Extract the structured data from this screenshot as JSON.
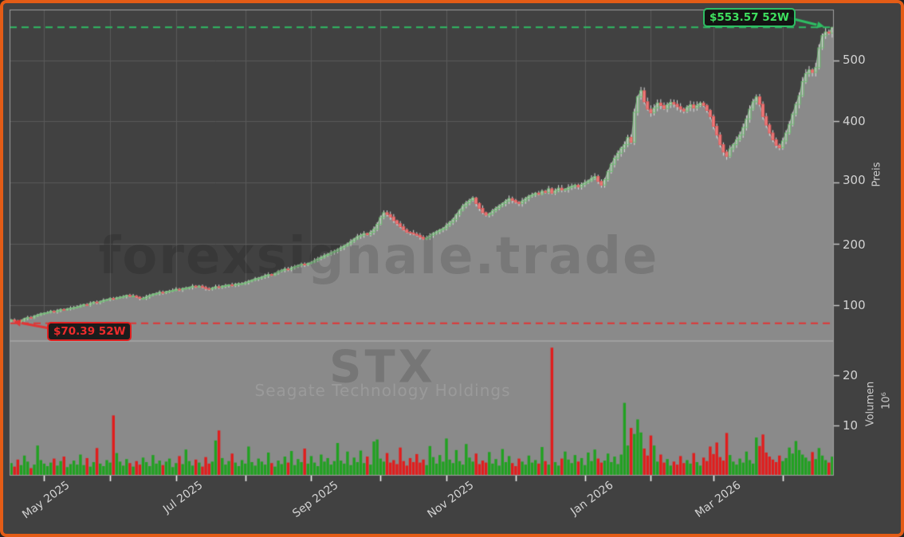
{
  "watermarks": {
    "brand": "forexsignale.trade",
    "ticker": "STX",
    "company": "Seagate Technology Holdings"
  },
  "annotations": {
    "high_52w": {
      "label": "$553.57 52W",
      "value": 553.57
    },
    "low_52w": {
      "label": "$70.39 52W",
      "value": 70.39
    }
  },
  "chart_data": {
    "type": "candlestick",
    "title": "STX — Seagate Technology Holdings",
    "legend": "none",
    "grid": true,
    "price_axis": {
      "label": "Preis",
      "ticks": [
        100,
        200,
        300,
        400,
        500
      ],
      "range": [
        42,
        582
      ]
    },
    "volume_axis": {
      "label": "Volumen",
      "unit": "10⁶",
      "ticks": [
        10,
        20
      ],
      "range": [
        0,
        26.3
      ]
    },
    "x_ticks": [
      {
        "label": "May 2025",
        "day": 10
      },
      {
        "label": "",
        "day": 30
      },
      {
        "label": "Jul 2025",
        "day": 50
      },
      {
        "label": "",
        "day": 71
      },
      {
        "label": "Sep 2025",
        "day": 91
      },
      {
        "label": "",
        "day": 112
      },
      {
        "label": "Nov 2025",
        "day": 132
      },
      {
        "label": "",
        "day": 153
      },
      {
        "label": "Jan 2026",
        "day": 174
      },
      {
        "label": "",
        "day": 194
      },
      {
        "label": "Mar 2026",
        "day": 213
      },
      {
        "label": "",
        "day": 234
      }
    ],
    "high_52w": 553.57,
    "low_52w": 70.39,
    "days": 250,
    "closes": [
      76,
      74,
      72.5,
      75,
      78,
      80,
      79,
      82,
      84,
      86,
      87,
      88,
      90,
      89,
      91,
      93,
      92,
      94,
      95,
      96,
      97,
      99,
      101,
      100,
      103,
      105,
      104,
      106,
      108,
      109,
      111,
      110,
      112,
      113,
      114,
      116,
      115,
      115,
      113,
      111,
      111,
      114,
      116,
      118,
      119,
      121,
      120,
      122,
      123,
      124,
      126,
      125,
      127,
      128,
      129,
      131,
      130,
      131,
      129,
      127,
      126,
      128,
      130,
      129,
      131,
      132,
      133,
      132,
      134,
      135,
      135,
      137,
      139,
      141,
      143,
      144,
      146,
      148,
      150,
      149,
      152,
      155,
      157,
      159,
      158,
      161,
      163,
      165,
      167,
      166,
      168,
      170,
      173,
      176,
      178,
      181,
      183,
      186,
      188,
      191,
      194,
      197,
      200,
      204,
      208,
      212,
      214,
      217,
      215,
      219,
      224,
      232,
      243,
      251,
      248,
      244,
      238,
      233,
      228,
      223,
      219,
      218,
      216,
      214,
      211,
      208,
      210,
      214,
      217,
      220,
      223,
      225,
      230,
      235,
      240,
      248,
      255,
      262,
      267,
      271,
      275,
      266,
      258,
      251,
      247,
      249,
      254,
      258,
      262,
      266,
      270,
      274,
      271,
      268,
      266,
      270,
      274,
      278,
      280,
      283,
      281,
      286,
      284,
      290,
      283,
      287,
      291,
      288,
      289,
      292,
      294,
      296,
      293,
      297,
      300,
      303,
      307,
      310,
      302,
      296,
      305,
      318,
      330,
      340,
      348,
      356,
      362,
      374,
      366,
      415,
      440,
      450,
      432,
      420,
      414,
      422,
      430,
      426,
      421,
      427,
      431,
      428,
      424,
      420,
      417,
      423,
      427,
      422,
      426,
      430,
      426,
      418,
      408,
      392,
      378,
      362,
      350,
      343,
      355,
      362,
      370,
      378,
      390,
      404,
      420,
      432,
      440,
      428,
      408,
      394,
      381,
      370,
      361,
      357,
      368,
      381,
      395,
      412,
      428,
      442,
      465,
      478,
      484,
      480,
      488,
      520,
      540,
      546,
      544,
      553.57
    ],
    "volumes_millions": [
      2.5,
      1.8,
      3.2,
      2.1,
      4.0,
      2.8,
      1.5,
      2.2,
      6.0,
      3.1,
      2.4,
      1.9,
      2.6,
      3.4,
      2.0,
      2.9,
      3.8,
      1.7,
      2.3,
      3.0,
      2.2,
      4.2,
      2.1,
      3.5,
      1.8,
      2.7,
      5.5,
      2.4,
      1.9,
      3.1,
      2.6,
      12.0,
      4.5,
      2.8,
      2.0,
      3.3,
      2.5,
      1.8,
      2.9,
      2.2,
      3.6,
      2.7,
      1.9,
      4.1,
      2.4,
      3.0,
      2.1,
      2.8,
      3.4,
      1.7,
      2.5,
      3.9,
      2.3,
      5.2,
      2.9,
      2.0,
      3.2,
      2.6,
      1.8,
      3.7,
      2.4,
      2.8,
      7.0,
      9.0,
      3.5,
      2.2,
      2.9,
      4.4,
      2.6,
      1.9,
      3.1,
      2.4,
      5.8,
      2.7,
      2.0,
      3.4,
      2.8,
      2.2,
      4.6,
      2.5,
      1.8,
      3.0,
      2.3,
      3.8,
      2.6,
      4.9,
      2.1,
      3.3,
      2.7,
      5.4,
      2.4,
      3.9,
      2.6,
      1.9,
      4.2,
      2.8,
      3.5,
      2.2,
      2.9,
      6.5,
      3.0,
      2.4,
      4.8,
      2.1,
      3.6,
      2.7,
      5.0,
      2.5,
      3.8,
      2.2,
      6.8,
      7.2,
      3.4,
      2.8,
      4.5,
      2.6,
      3.1,
      2.3,
      5.6,
      2.9,
      2.0,
      3.5,
      2.7,
      4.3,
      2.6,
      3.2,
      2.1,
      5.9,
      3.7,
      2.4,
      4.1,
      2.8,
      7.4,
      3.2,
      2.5,
      5.1,
      2.9,
      2.2,
      6.3,
      3.6,
      2.8,
      4.4,
      2.3,
      3.0,
      2.6,
      4.7,
      2.4,
      3.3,
      2.0,
      5.3,
      2.7,
      3.9,
      2.5,
      1.9,
      3.4,
      2.8,
      2.2,
      4.0,
      2.6,
      3.1,
      2.4,
      5.7,
      2.9,
      2.2,
      25.5,
      2.7,
      2.0,
      3.4,
      4.8,
      3.2,
      2.5,
      4.1,
      2.8,
      3.5,
      2.1,
      4.6,
      2.9,
      5.2,
      3.4,
      2.6,
      3.0,
      4.4,
      2.7,
      3.8,
      2.3,
      4.2,
      14.5,
      6.0,
      9.5,
      8.3,
      11.2,
      8.6,
      5.4,
      4.0,
      8.0,
      6.0,
      2.8,
      4.2,
      2.6,
      3.3,
      2.0,
      2.8,
      2.2,
      3.9,
      2.5,
      3.1,
      2.4,
      4.5,
      2.7,
      2.0,
      3.6,
      2.9,
      5.8,
      4.3,
      6.6,
      3.7,
      3.0,
      8.5,
      4.1,
      2.8,
      2.2,
      3.4,
      2.6,
      4.8,
      3.1,
      2.4,
      7.6,
      5.9,
      8.2,
      4.6,
      3.8,
      3.2,
      2.7,
      4.0,
      2.9,
      3.5,
      5.6,
      4.4,
      6.9,
      5.1,
      4.2,
      3.6,
      2.9,
      4.7,
      3.3,
      5.5,
      4.0,
      3.1,
      2.6,
      3.8
    ]
  },
  "colors": {
    "background": "#414141",
    "grid": "#5a5a5a",
    "panel_gray": "#8a8a8a",
    "area_edge": "#c8c8c8",
    "spine": "#a0a0a0",
    "wick": "#dcdcdc",
    "candle_up": "#6fbf73",
    "candle_down_fill": "#ee7d7d",
    "candle_down_edge": "#e25d5d",
    "volume_up": "#21a121",
    "volume_down": "#e11d1d",
    "line_high": "#2ebd63",
    "line_low": "#e23535",
    "tick_mark_x": "#f2f2f2",
    "tick_mark_y": "#c8c8c8",
    "border_orange": "#e45c16"
  }
}
